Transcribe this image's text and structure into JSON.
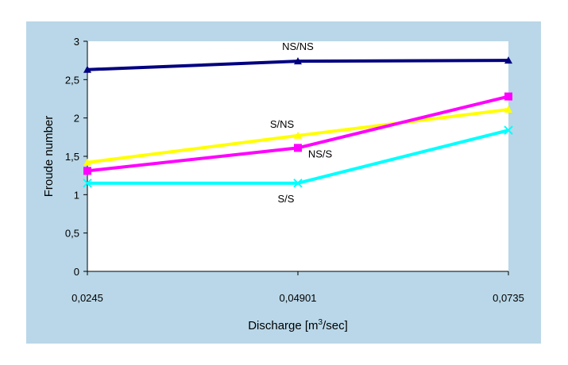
{
  "chart_data": {
    "type": "line",
    "xlabel": "Discharge [m",
    "xlabel_sup": "3",
    "xlabel_tail": "/sec]",
    "ylabel": "Froude number",
    "categories": [
      "0,0245",
      "0,04901",
      "0,0735"
    ],
    "yticks": [
      "0",
      "0,5",
      "1",
      "1,5",
      "2",
      "2,5",
      "3"
    ],
    "ylim": [
      0,
      3
    ],
    "grid": "none",
    "legend": "none",
    "series": [
      {
        "name": "NS/NS",
        "values": [
          2.63,
          2.74,
          2.75
        ],
        "color": "#000080",
        "marker": "triangle"
      },
      {
        "name": "S/NS",
        "values": [
          1.42,
          1.77,
          2.11
        ],
        "color": "#ffff00",
        "marker": "triangle"
      },
      {
        "name": "NS/S",
        "values": [
          1.31,
          1.61,
          2.28
        ],
        "color": "#ff00ff",
        "marker": "square"
      },
      {
        "name": "S/S",
        "values": [
          1.15,
          1.15,
          1.84
        ],
        "color": "#00ffff",
        "marker": "x"
      }
    ],
    "plot_background": "#ffffff",
    "chart_background": "#b9d7e8"
  }
}
